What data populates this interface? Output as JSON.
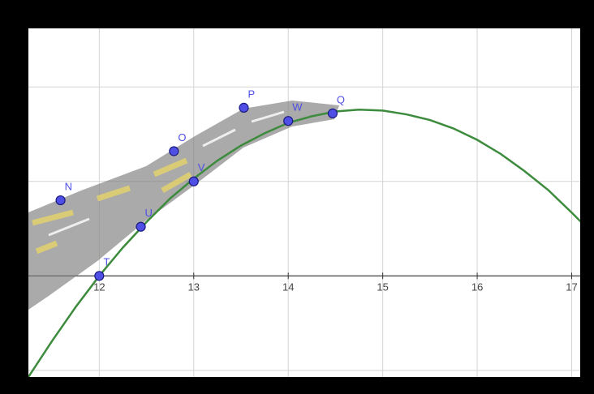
{
  "chart_data": {
    "type": "line",
    "x": [
      11.25,
      11.5,
      11.75,
      12,
      12.25,
      12.5,
      12.75,
      13,
      13.25,
      13.5,
      13.75,
      14,
      14.25,
      14.5,
      14.75,
      15,
      15.25,
      15.5,
      15.75,
      16,
      16.25,
      16.5,
      16.75,
      17,
      17.1
    ],
    "values": [
      -1.07,
      -0.69,
      -0.33,
      0,
      0.3,
      0.57,
      0.82,
      1.03,
      1.22,
      1.38,
      1.51,
      1.62,
      1.69,
      1.74,
      1.76,
      1.75,
      1.71,
      1.65,
      1.56,
      1.44,
      1.29,
      1.11,
      0.91,
      0.67,
      0.57
    ],
    "color": "#3d8b3d",
    "points": {
      "labels": [
        "N",
        "O",
        "P",
        "Q",
        "T",
        "U",
        "V",
        "W"
      ],
      "x": [
        11.59,
        12.79,
        13.53,
        14.47,
        12.0,
        12.44,
        13.0,
        14.0
      ],
      "y": [
        0.8,
        1.32,
        1.78,
        1.72,
        0,
        0.52,
        1.0,
        1.64
      ],
      "color": "#4f4fe6"
    },
    "xlim": [
      11.25,
      17.09
    ],
    "ylim": [
      -1.07,
      2.62
    ],
    "xticks": [
      12,
      13,
      14,
      15,
      16,
      17
    ],
    "yticks": [
      -1,
      0,
      1,
      2
    ],
    "show_ytick_labels": false,
    "grid": true
  }
}
